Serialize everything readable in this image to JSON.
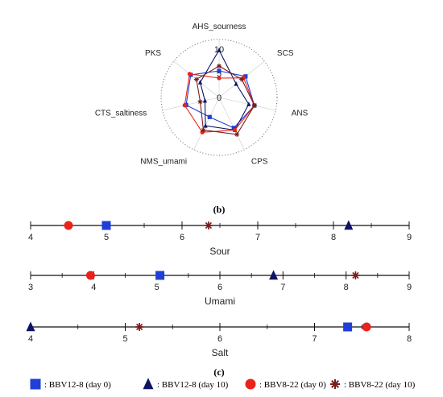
{
  "figure": {
    "caption_b": "(b)",
    "caption_c": "(c)"
  },
  "colors": {
    "BBV12-8 (day 0)": "#1f3fd8",
    "BBV12-8 (day 10)": "#0d1466",
    "BBV8-22 (day 0)": "#e8231c",
    "BBV8-22 (day 10)": "#7a1c1c"
  },
  "chart_data": [
    {
      "type": "radar",
      "axes": [
        "AHS_sourness",
        "SCS",
        "ANS",
        "CPS",
        "NMS_umami",
        "CTS_saltiness",
        "PKS"
      ],
      "rings": [
        0,
        5,
        10
      ],
      "range": [
        0,
        10
      ],
      "series": [
        {
          "name": "BBV12-8 (day 0)",
          "marker": "square",
          "values": [
            5.5,
            7.0,
            7.5,
            7.0,
            4.5,
            7.0,
            7.5
          ]
        },
        {
          "name": "BBV12-8 (day 10)",
          "marker": "triangle",
          "values": [
            9.8,
            4.5,
            6.3,
            7.5,
            6.5,
            3.0,
            5.0
          ]
        },
        {
          "name": "BBV8-22 (day 0)",
          "marker": "circle",
          "values": [
            4.0,
            6.5,
            7.5,
            7.5,
            8.0,
            7.3,
            7.8
          ]
        },
        {
          "name": "BBV8-22 (day 10)",
          "marker": "star",
          "values": [
            6.5,
            6.0,
            7.5,
            8.5,
            7.5,
            4.0,
            6.0
          ]
        }
      ]
    },
    {
      "type": "scatter",
      "axis_label": "Sour",
      "xlim": [
        4,
        9
      ],
      "ticks": [
        4,
        5,
        6,
        7,
        8,
        9
      ],
      "points": [
        {
          "series": "BBV12-8 (day 0)",
          "marker": "square",
          "x": 5.0
        },
        {
          "series": "BBV12-8 (day 10)",
          "marker": "triangle",
          "x": 8.2
        },
        {
          "series": "BBV8-22 (day 0)",
          "marker": "circle",
          "x": 4.5
        },
        {
          "series": "BBV8-22 (day 10)",
          "marker": "star",
          "x": 6.35
        }
      ]
    },
    {
      "type": "scatter",
      "axis_label": "Umami",
      "xlim": [
        3,
        9
      ],
      "ticks": [
        3,
        4,
        5,
        6,
        7,
        8,
        9
      ],
      "points": [
        {
          "series": "BBV12-8 (day 0)",
          "marker": "square",
          "x": 5.05
        },
        {
          "series": "BBV12-8 (day 10)",
          "marker": "triangle",
          "x": 6.85
        },
        {
          "series": "BBV8-22 (day 0)",
          "marker": "circle",
          "x": 3.95
        },
        {
          "series": "BBV8-22 (day 10)",
          "marker": "star",
          "x": 8.15
        }
      ]
    },
    {
      "type": "scatter",
      "axis_label": "Salt",
      "xlim": [
        4,
        8
      ],
      "ticks": [
        4,
        5,
        6,
        7,
        8
      ],
      "points": [
        {
          "series": "BBV12-8 (day 0)",
          "marker": "square",
          "x": 7.35
        },
        {
          "series": "BBV12-8 (day 10)",
          "marker": "triangle",
          "x": 4.0
        },
        {
          "series": "BBV8-22 (day 0)",
          "marker": "circle",
          "x": 7.55
        },
        {
          "series": "BBV8-22 (day 10)",
          "marker": "star",
          "x": 5.15
        }
      ]
    }
  ],
  "legend": [
    {
      "marker": "square",
      "series": "BBV12-8 (day 0)",
      "label": ": BBV12-8 (day 0)"
    },
    {
      "marker": "triangle",
      "series": "BBV12-8 (day 10)",
      "label": ": BBV12-8 (day 10)"
    },
    {
      "marker": "circle",
      "series": "BBV8-22 (day 0)",
      "label": ": BBV8-22 (day 0)"
    },
    {
      "marker": "star",
      "series": "BBV8-22 (day 10)",
      "label": ": BBV8-22 (day 10)"
    }
  ]
}
